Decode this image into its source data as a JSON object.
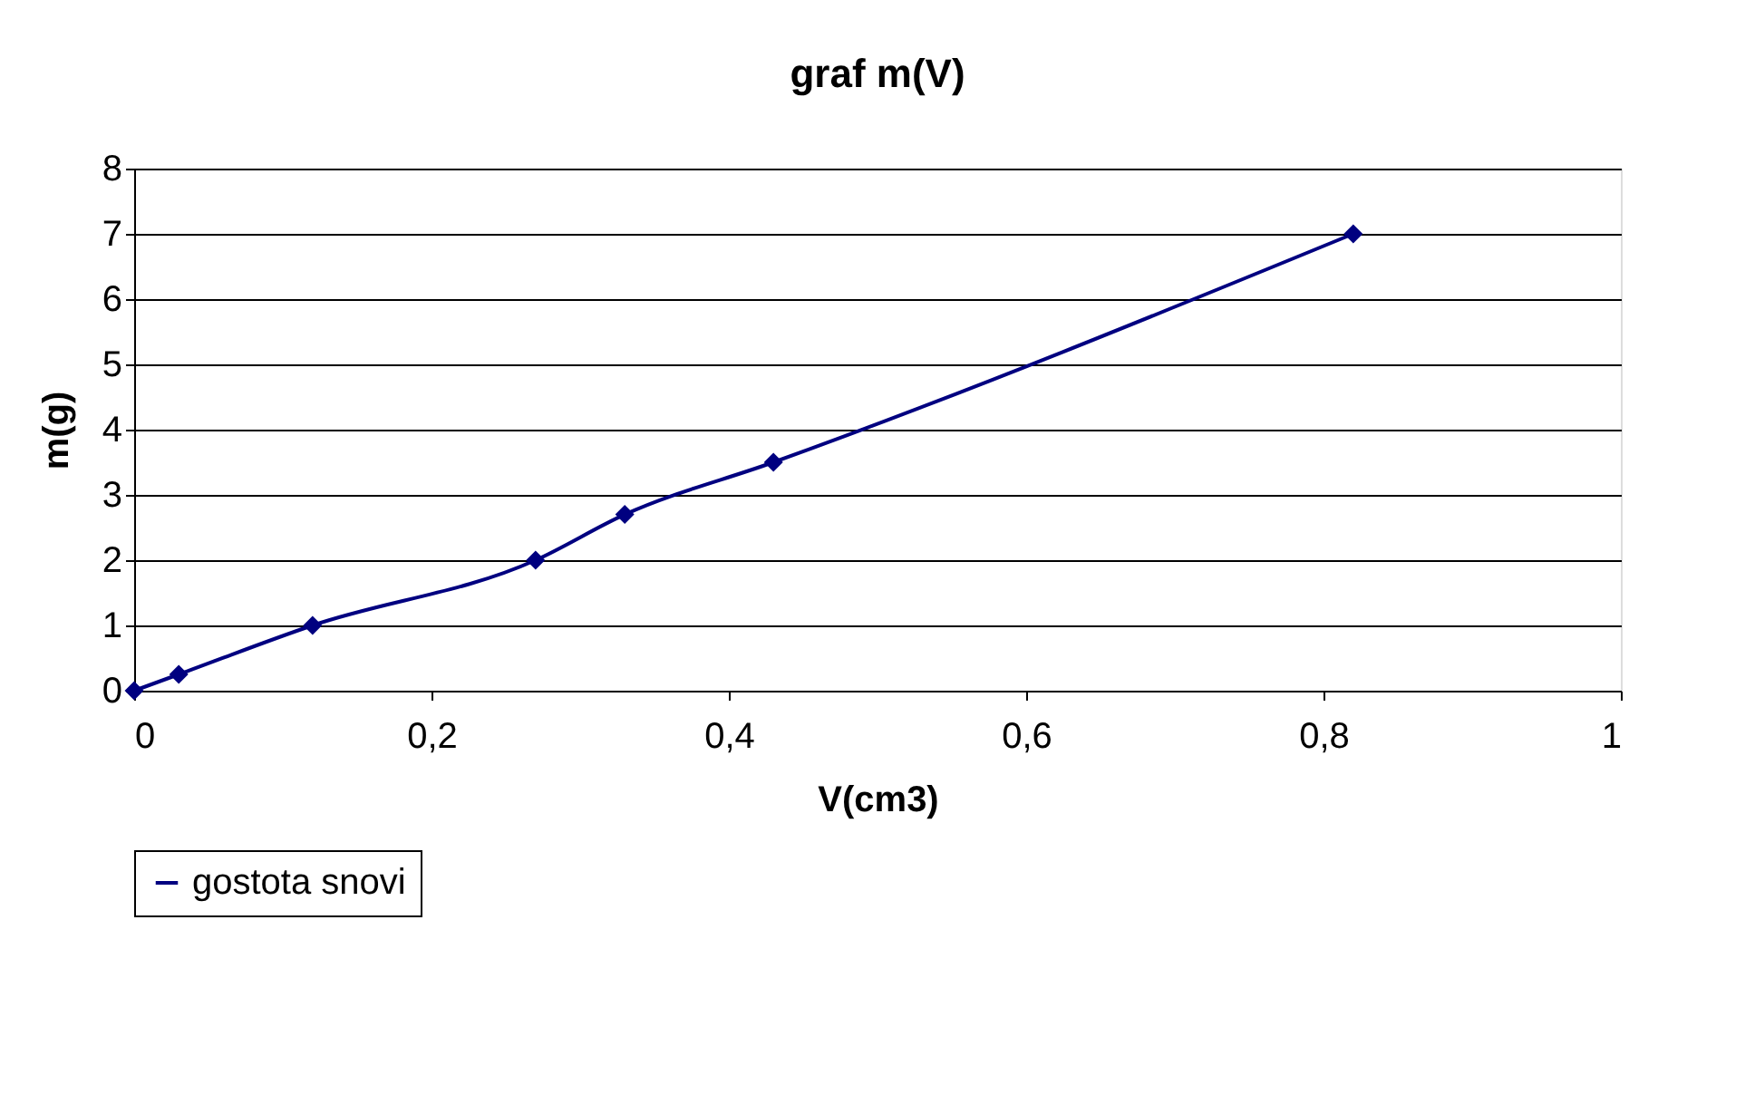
{
  "chart_data": {
    "type": "line",
    "title": "graf m(V)",
    "xlabel": "V(cm3)",
    "ylabel": "m(g)",
    "x": [
      0,
      0.03,
      0.12,
      0.27,
      0.33,
      0.43,
      0.82
    ],
    "series": [
      {
        "name": "gostota snovi",
        "color": "#000080",
        "values": [
          0,
          0.25,
          1,
          2,
          2.7,
          3.5,
          7
        ]
      }
    ],
    "xlim": [
      0,
      1
    ],
    "xticks": [
      0,
      {
        "value": 0.2,
        "label": "0,2"
      },
      {
        "value": 0.4,
        "label": "0,4"
      },
      {
        "value": 0.6,
        "label": "0,6"
      },
      {
        "value": 0.8,
        "label": "0,8"
      },
      1
    ],
    "ylim": [
      0,
      8
    ],
    "yticks": [
      0,
      1,
      2,
      3,
      4,
      5,
      6,
      7,
      8
    ],
    "grid": "y",
    "legend": "bottom",
    "marker": "diamond",
    "line_style": "solid"
  }
}
